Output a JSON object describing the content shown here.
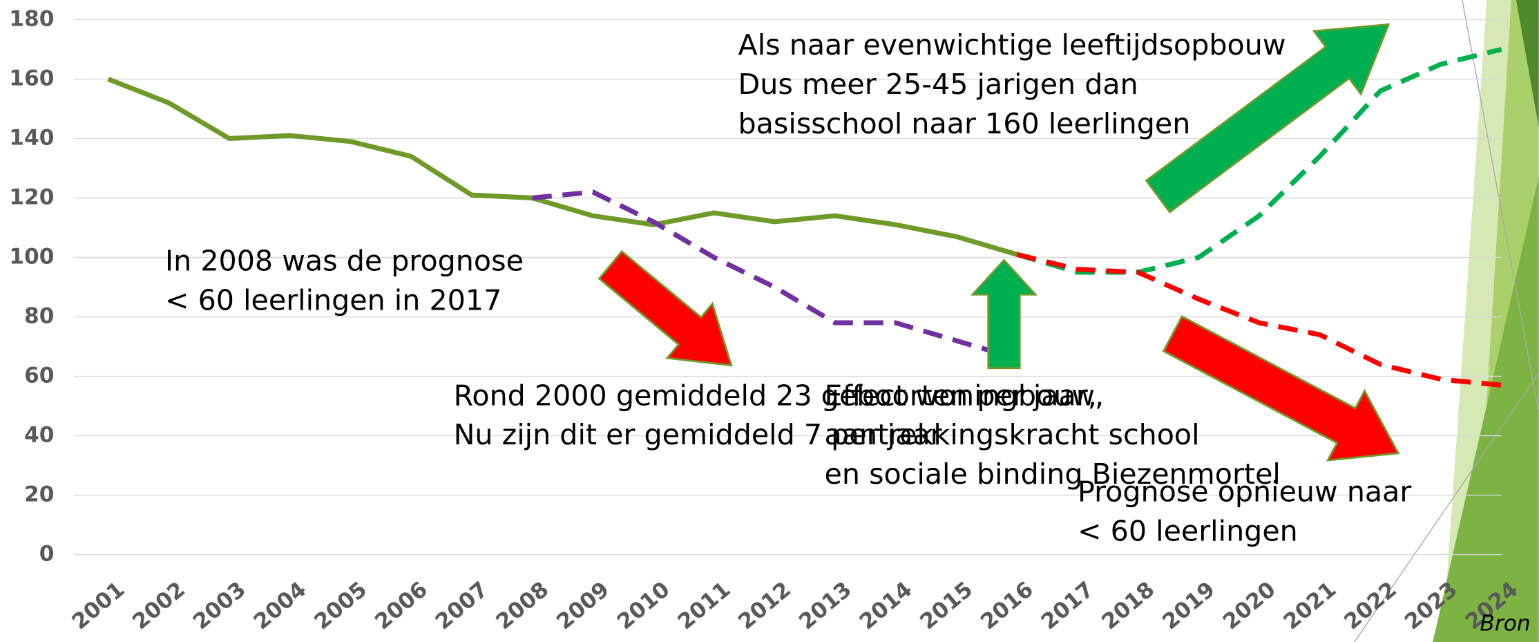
{
  "chart_data": {
    "type": "line",
    "categories": [
      "2001",
      "2002",
      "2003",
      "2004",
      "2005",
      "2006",
      "2007",
      "2008",
      "2009",
      "2010",
      "2011",
      "2012",
      "2013",
      "2014",
      "2015",
      "2016",
      "2017",
      "2018",
      "2019",
      "2020",
      "2021",
      "2022",
      "2023",
      "2024"
    ],
    "series": [
      {
        "color": "#6f9a2a",
        "dash": false,
        "values": [
          160,
          152,
          140,
          141,
          139,
          134,
          121,
          120,
          114,
          111,
          115,
          112,
          114,
          111,
          107,
          101,
          null,
          null,
          null,
          null,
          null,
          null,
          null,
          null
        ]
      },
      {
        "color": "#7030a0",
        "dash": true,
        "values": [
          null,
          null,
          null,
          null,
          null,
          null,
          null,
          120,
          122,
          112,
          100,
          90,
          78,
          78,
          72,
          66,
          null,
          null,
          null,
          null,
          null,
          null,
          null,
          null
        ]
      },
      {
        "color": "#00b050",
        "dash": true,
        "values": [
          null,
          null,
          null,
          null,
          null,
          null,
          null,
          null,
          null,
          null,
          null,
          null,
          null,
          null,
          null,
          101,
          95,
          95,
          100,
          114,
          134,
          156,
          165,
          170
        ]
      },
      {
        "color": "#ff0000",
        "dash": true,
        "values": [
          null,
          null,
          null,
          null,
          null,
          null,
          null,
          null,
          null,
          null,
          null,
          null,
          null,
          null,
          null,
          101,
          96,
          95,
          86,
          78,
          74,
          64,
          59,
          57
        ]
      }
    ],
    "ylim": [
      0,
      180
    ],
    "yticks": [
      0,
      20,
      40,
      60,
      80,
      100,
      120,
      140,
      160,
      180
    ],
    "grid": true,
    "annotations": [
      [
        "Als naar evenwichtige leeftijdsopbouw",
        "Dus meer 25-45 jarigen dan",
        "basisschool naar 160 leerlingen"
      ],
      [
        "In 2008 was de prognose",
        "< 60 leerlingen in 2017"
      ],
      [
        "Rond 2000 gemiddeld 23 geboorten per jaar,",
        "Nu zijn dit er gemiddeld 7 per jaar"
      ],
      [
        "Effect woningbouw,",
        "aantrekkingskracht school",
        "en sociale binding Biezenmortel"
      ],
      [
        "Prognose opnieuw naar",
        "< 60 leerlingen"
      ]
    ],
    "source": "Bron"
  }
}
